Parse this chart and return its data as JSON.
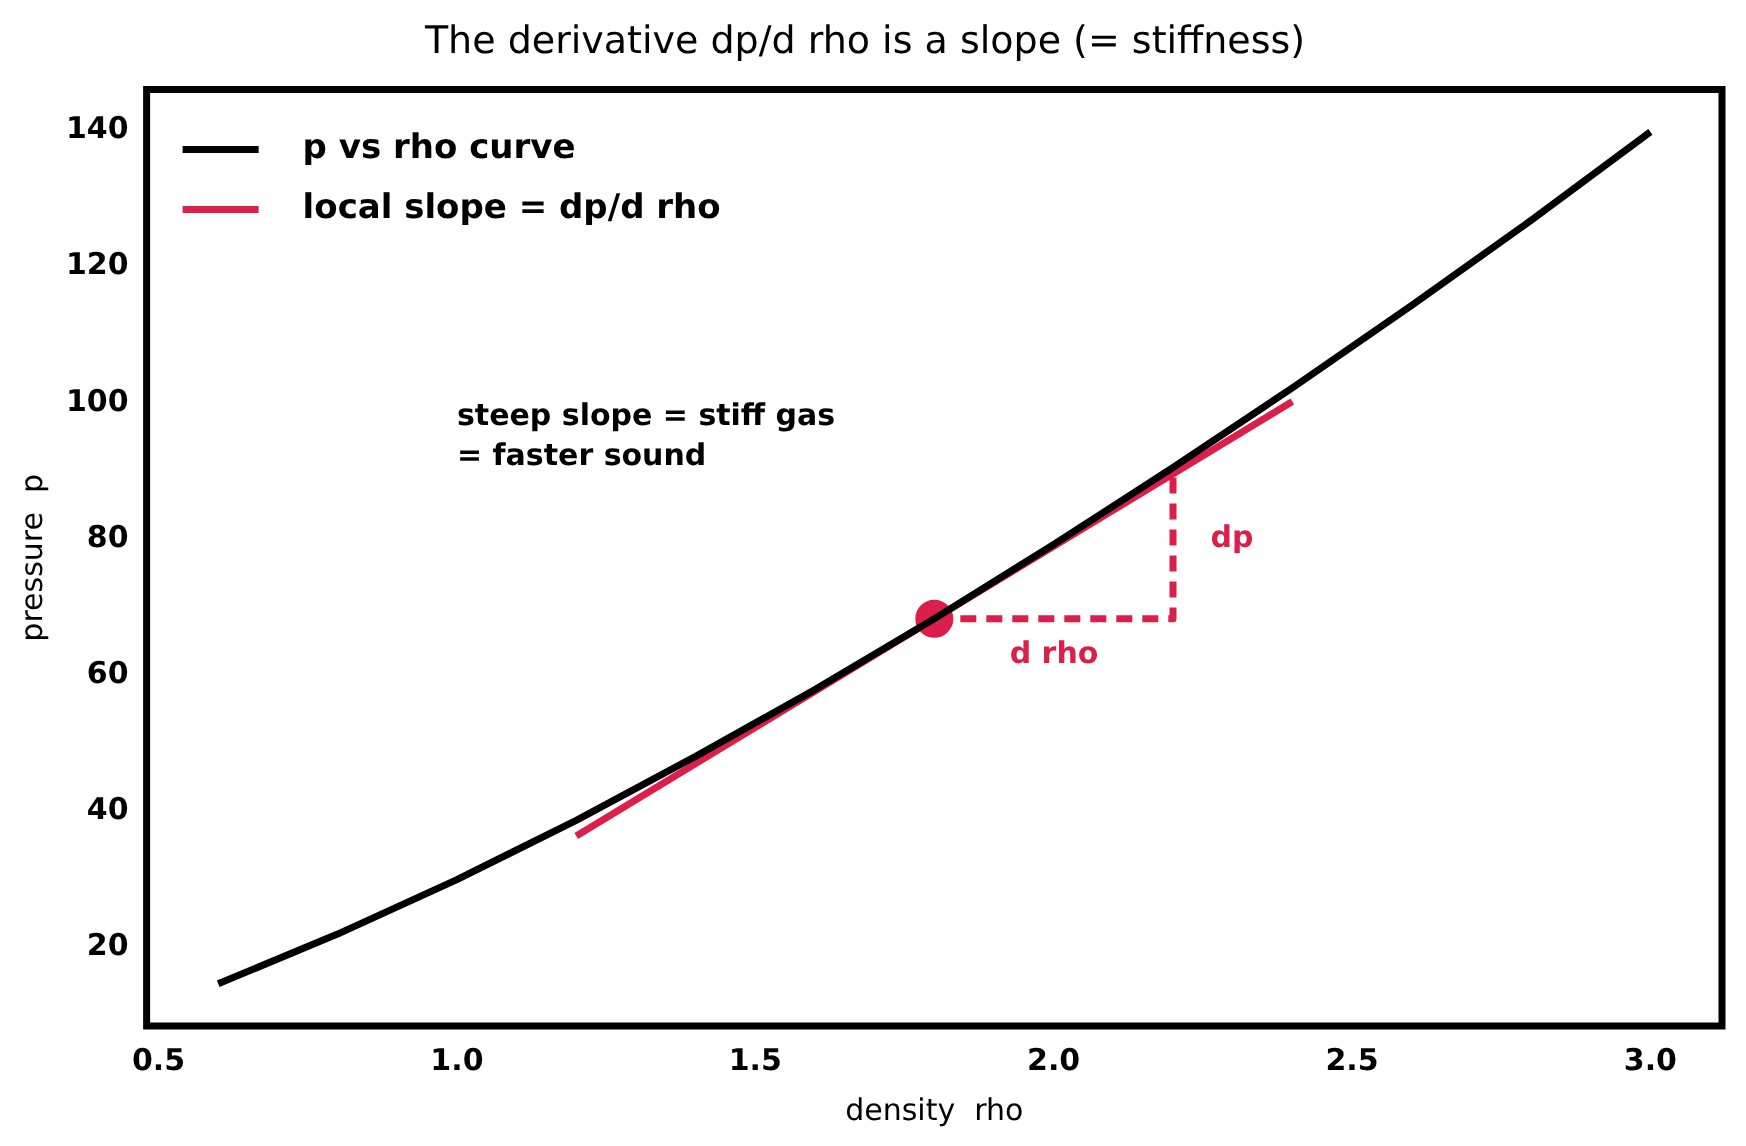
{
  "chart_data": {
    "type": "line",
    "title": "The derivative dp/d rho is a slope (= stiffness)",
    "xlabel": "density  rho",
    "ylabel": "pressure  p",
    "x": [
      0.6,
      0.8,
      1.0,
      1.2,
      1.4,
      1.6,
      1.8,
      2.0,
      2.2,
      2.4,
      2.6,
      2.8,
      3.0
    ],
    "series": [
      {
        "name": "p vs rho curve",
        "color": "#000000",
        "values": [
          14.7,
          22.0,
          30.0,
          38.7,
          48.1,
          57.9,
          68.3,
          79.2,
          90.5,
          102.2,
          114.3,
          126.8,
          139.8
        ]
      },
      {
        "name": "local slope = dp/d rho",
        "color": "#dc1e4a",
        "x": [
          1.2,
          2.4
        ],
        "values": [
          36.4,
          100.2
        ]
      },
      {
        "type": "scatter",
        "marker": "circle",
        "color": "#dc1e4a",
        "x": [
          1.8
        ],
        "values": [
          68.3
        ]
      },
      {
        "color": "#dc1e4a",
        "line_style": "dashed",
        "x": [
          1.8,
          2.2,
          2.2
        ],
        "values": [
          68.3,
          68.3,
          89.5
        ]
      }
    ],
    "annotations": [
      "steep slope = stiff gas\n= faster sound",
      "dp",
      "d rho"
    ],
    "xlim": [
      0.48,
      3.12
    ],
    "ylim": [
      8.5,
      146
    ],
    "xticks": [
      0.5,
      {
        "value": 1,
        "label": "1.0"
      },
      1.5,
      {
        "value": 2,
        "label": "2.0"
      },
      2.5,
      {
        "value": 3,
        "label": "3.0"
      }
    ],
    "yticks": [
      20,
      40,
      60,
      80,
      100,
      120,
      140
    ],
    "grid": false,
    "legend": "top left"
  }
}
